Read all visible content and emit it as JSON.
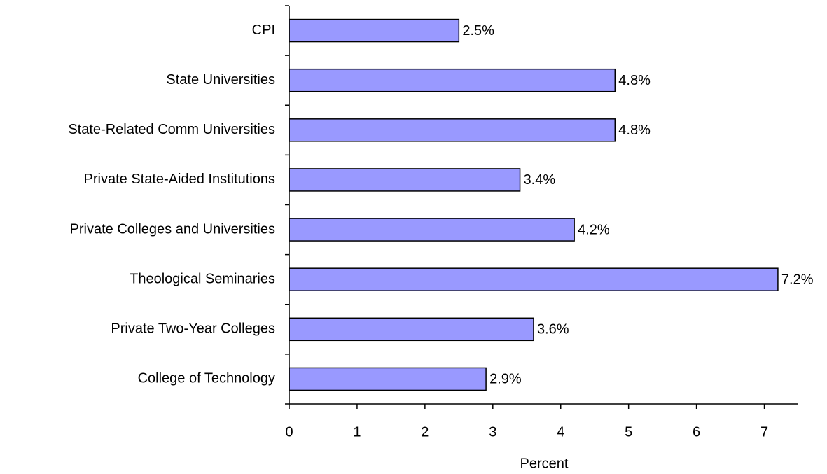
{
  "chart_data": {
    "type": "hbar",
    "xlabel": "Percent",
    "categories": [
      "CPI",
      "State Universities",
      "State-Related Comm Universities",
      "Private State-Aided Institutions",
      "Private Colleges and Universities",
      "Theological Seminaries",
      "Private Two-Year Colleges",
      "College of Technology"
    ],
    "values": [
      2.5,
      4.8,
      4.8,
      3.4,
      4.2,
      7.2,
      3.6,
      2.9
    ],
    "value_labels": [
      "2.5%",
      "4.8%",
      "4.8%",
      "3.4%",
      "4.2%",
      "7.2%",
      "3.6%",
      "2.9%"
    ],
    "color": "#9999ff",
    "xlim": [
      0,
      7.5
    ],
    "xticks": [
      0,
      1,
      2,
      3,
      4,
      5,
      6,
      7
    ]
  }
}
